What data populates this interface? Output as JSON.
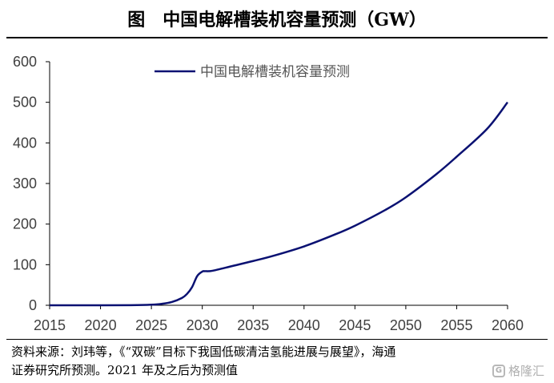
{
  "header": {
    "fig_label": "图",
    "title": "中国电解槽装机容量预测（GW）"
  },
  "footer": {
    "source_line1": "资料来源：刘玮等，《“双碳”目标下我国低碳清洁氢能进展与展望》，海通",
    "source_line2": "证券研究所预测。2021 年及之后为预测值",
    "watermark": "格隆汇",
    "watermark_logo": "G"
  },
  "colors": {
    "series": "#0a1172",
    "axis": "#000000"
  },
  "chart_data": {
    "type": "line",
    "title": "中国电解槽装机容量预测（GW）",
    "xlabel": "",
    "ylabel": "",
    "xlim": [
      2015,
      2060
    ],
    "ylim": [
      0,
      600
    ],
    "x_ticks": [
      2015,
      2020,
      2025,
      2030,
      2035,
      2040,
      2045,
      2050,
      2055,
      2060
    ],
    "y_ticks": [
      0,
      100,
      200,
      300,
      400,
      500,
      600
    ],
    "legend_position": "top-center",
    "series": [
      {
        "name": "中国电解槽装机容量预测",
        "x": [
          2015,
          2020,
          2023,
          2025,
          2026,
          2027,
          2028,
          2028.5,
          2029,
          2029.5,
          2030,
          2030.3,
          2031,
          2033,
          2035,
          2037,
          2040,
          2043,
          2045,
          2048,
          2050,
          2053,
          2055,
          2058,
          2060
        ],
        "values": [
          0,
          0,
          0.3,
          1.5,
          3.5,
          8,
          18,
          28,
          45,
          72,
          83,
          84,
          85,
          97,
          109,
          122,
          145,
          174,
          196,
          235,
          266,
          323,
          366,
          435,
          500
        ]
      }
    ]
  }
}
